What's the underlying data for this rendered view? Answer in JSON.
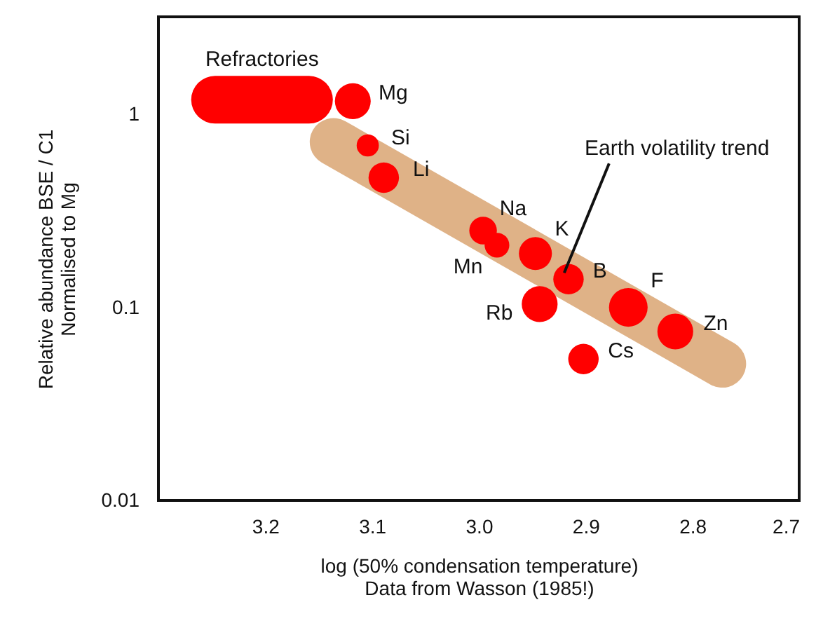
{
  "chart_data": {
    "type": "bubble",
    "xlabel": "log (50% condensation temperature)",
    "ylabel": "Relative abundance BSE / C1\nNormalised to Mg",
    "log": "y",
    "grid": false,
    "xlim": [
      3.3,
      2.7
    ],
    "xticks": [
      3.2,
      3.1,
      {
        "value": 3,
        "label": "3.0"
      },
      2.9,
      2.8,
      2.7
    ],
    "ylim": [
      0.01,
      3.2
    ],
    "yticks": [
      0.01,
      0.1,
      1
    ],
    "series": [
      {
        "type": "line",
        "color": "#dfb287",
        "x": [
          3.136,
          2.772
        ],
        "values": [
          0.72,
          0.051
        ]
      },
      {
        "type": "line",
        "name": "Refractories",
        "color": "#ff0000",
        "x": [
          3.247,
          3.159
        ],
        "values": [
          1.19,
          1.19
        ]
      },
      {
        "color": "#ff0000",
        "x": [
          3.118,
          3.104,
          3.089,
          2.996,
          2.983,
          2.947,
          2.916,
          2.943,
          2.86,
          2.816,
          2.902
        ],
        "values": [
          1.17,
          0.69,
          0.47,
          0.25,
          0.21,
          0.19,
          0.14,
          0.104,
          0.1,
          0.075,
          0.054
        ],
        "sizes": [
          0.86,
          0.33,
          0.62,
          0.51,
          0.41,
          0.73,
          0.62,
          0.86,
          1,
          0.86,
          0.62
        ],
        "value_labels": [
          "Mg",
          "Si",
          "Li",
          "Na",
          "Mn",
          "K",
          "B",
          "Rb",
          "F",
          "Zn",
          "Cs"
        ]
      }
    ],
    "annotations": [
      {
        "text": "Earth volatility trend",
        "x": 2.92,
        "y": 0.151
      },
      "Data from Wasson (1985!)"
    ]
  }
}
